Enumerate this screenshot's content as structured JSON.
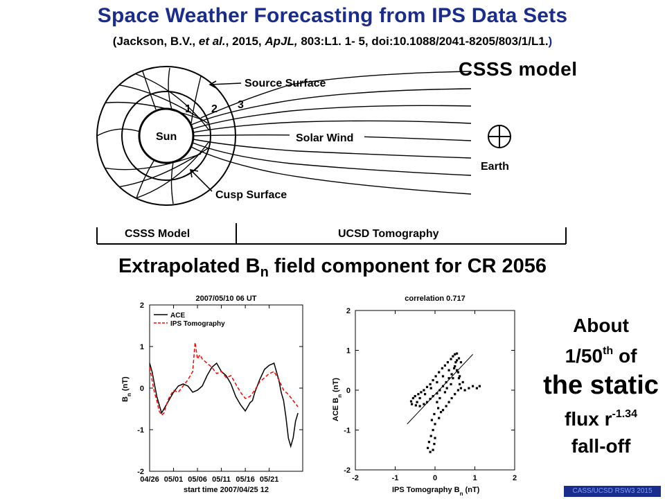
{
  "header": {
    "title": "Space Weather Forecasting from IPS Data Sets",
    "citation_open": "(Jackson, B.V., ",
    "citation_etal": "et al.",
    "citation_mid": ", 2015, ",
    "citation_journal": "ApJL,",
    "citation_rest": " 803:L1. 1- 5, doi:10.1088/2041-8205/803/1/L1.",
    "citation_close": ")"
  },
  "diagram": {
    "model_label": "CSSS model",
    "source_surface": "Source Surface",
    "sun": "Sun",
    "solar_wind": "Solar Wind",
    "earth": "Earth",
    "cusp_surface": "Cusp Surface",
    "region_1": "1",
    "region_2": "2",
    "region_3": "3",
    "bar_left": "CSSS Model",
    "bar_right": "UCSD Tomography"
  },
  "section": {
    "title_prefix": "Extrapolated B",
    "title_sub": "n",
    "title_suffix": " field component for CR 2056"
  },
  "aside": {
    "line1": "About",
    "line2_pre": "1/50",
    "line2_sup": "th",
    "line2_post": " of",
    "line3": "the static",
    "line4_pre": "flux r",
    "line4_sup": "-1.34",
    "line5": "fall-off"
  },
  "footer": "CASS/UCSD  RSW3 2015",
  "chart_data": [
    {
      "type": "line",
      "title": "2007/05/10 06 UT",
      "xlabel": "start time 2007/04/25 12",
      "ylabel": "B_n (nT)",
      "ylim": [
        -2,
        2
      ],
      "xlim": [
        0,
        32
      ],
      "x_ticks": [
        0,
        5,
        10,
        15,
        20,
        25
      ],
      "x_tick_labels": [
        "04/26",
        "05/01",
        "05/06",
        "05/11",
        "05/16",
        "05/21"
      ],
      "y_ticks": [
        -2,
        -1,
        0,
        1,
        2
      ],
      "y_tick_labels": [
        "-2",
        "-1",
        "0",
        "1",
        "2"
      ],
      "legend": "top-left",
      "series": [
        {
          "name": "ACE",
          "color": "#000000",
          "style": "solid",
          "x": [
            0,
            0.5,
            1,
            1.5,
            2,
            2.5,
            3,
            3.5,
            4,
            5,
            6,
            7,
            8,
            9,
            10,
            11,
            12,
            13,
            14,
            15,
            16,
            17,
            18,
            19,
            20,
            20.5,
            21,
            21.5,
            22,
            23,
            24,
            25,
            26,
            26.5,
            27,
            27.5,
            28,
            28.5,
            29,
            29.5,
            30,
            30.5,
            31
          ],
          "values": [
            0.6,
            0.4,
            0.1,
            -0.2,
            -0.4,
            -0.6,
            -0.5,
            -0.4,
            -0.3,
            -0.1,
            0.05,
            0.1,
            0.05,
            -0.1,
            -0.05,
            0.05,
            0.3,
            0.5,
            0.6,
            0.4,
            0.3,
            0.1,
            -0.2,
            -0.4,
            -0.55,
            -0.45,
            -0.35,
            -0.3,
            -0.1,
            0.2,
            0.45,
            0.55,
            0.6,
            0.4,
            0.2,
            -0.1,
            -0.3,
            -0.7,
            -1.2,
            -1.4,
            -1.2,
            -0.8,
            -0.6
          ]
        },
        {
          "name": "IPS Tomography",
          "color": "#ff0000",
          "style": "dashed",
          "x": [
            0,
            0.5,
            1,
            1.5,
            2,
            2.5,
            3,
            3.5,
            4,
            5,
            6,
            7,
            8,
            9,
            9.5,
            10,
            10.5,
            11,
            12,
            13,
            14,
            15,
            16,
            17,
            18,
            19,
            20,
            21,
            22,
            23,
            24,
            25,
            26,
            27,
            28,
            29,
            30,
            31
          ],
          "values": [
            0.5,
            0.2,
            -0.1,
            -0.3,
            -0.55,
            -0.65,
            -0.6,
            -0.4,
            -0.25,
            -0.05,
            -0.1,
            0.05,
            0.2,
            0.4,
            1.1,
            0.7,
            0.8,
            0.7,
            0.6,
            0.5,
            0.35,
            0.4,
            0.25,
            0.3,
            0.1,
            -0.1,
            -0.25,
            -0.2,
            -0.05,
            0.15,
            0.25,
            0.35,
            0.4,
            0.2,
            -0.05,
            -0.15,
            -0.3,
            -0.45
          ]
        }
      ]
    },
    {
      "type": "scatter",
      "title": "correlation 0.717",
      "xlabel": "IPS Tomography B_n (nT)",
      "ylabel": "ACE B_n (nT)",
      "xlim": [
        -2,
        2
      ],
      "ylim": [
        -2,
        2
      ],
      "x_ticks": [
        -2,
        -1,
        0,
        1,
        2
      ],
      "y_ticks": [
        -2,
        -1,
        0,
        1,
        2
      ],
      "fit_line": [
        [
          -0.7,
          -0.85
        ],
        [
          0.95,
          0.9
        ]
      ],
      "points": [
        [
          -0.55,
          -0.2
        ],
        [
          -0.5,
          -0.15
        ],
        [
          -0.42,
          -0.1
        ],
        [
          -0.35,
          -0.05
        ],
        [
          -0.28,
          0.0
        ],
        [
          -0.2,
          0.08
        ],
        [
          -0.12,
          0.15
        ],
        [
          -0.05,
          0.25
        ],
        [
          0.02,
          0.35
        ],
        [
          0.1,
          0.45
        ],
        [
          0.18,
          0.55
        ],
        [
          0.25,
          0.62
        ],
        [
          0.32,
          0.7
        ],
        [
          0.4,
          0.78
        ],
        [
          0.45,
          0.85
        ],
        [
          0.5,
          0.9
        ],
        [
          0.55,
          0.92
        ],
        [
          0.52,
          0.7
        ],
        [
          0.48,
          0.55
        ],
        [
          0.42,
          0.4
        ],
        [
          0.35,
          0.3
        ],
        [
          0.28,
          0.2
        ],
        [
          0.2,
          0.1
        ],
        [
          0.12,
          0.0
        ],
        [
          0.05,
          -0.08
        ],
        [
          -0.05,
          -0.15
        ],
        [
          -0.12,
          -0.22
        ],
        [
          -0.2,
          -0.3
        ],
        [
          -0.28,
          -0.35
        ],
        [
          -0.38,
          -0.4
        ],
        [
          -0.48,
          -0.38
        ],
        [
          -0.58,
          -0.35
        ],
        [
          -0.6,
          -0.28
        ],
        [
          0.5,
          0.6
        ],
        [
          0.55,
          0.5
        ],
        [
          0.6,
          0.3
        ],
        [
          0.62,
          0.15
        ],
        [
          0.58,
          0.0
        ],
        [
          0.5,
          -0.1
        ],
        [
          0.42,
          -0.2
        ],
        [
          0.35,
          -0.3
        ],
        [
          0.28,
          -0.4
        ],
        [
          0.2,
          -0.5
        ],
        [
          0.15,
          -0.55
        ],
        [
          0.1,
          -0.7
        ],
        [
          0.0,
          -0.85
        ],
        [
          -0.05,
          -1.0
        ],
        [
          -0.1,
          -1.15
        ],
        [
          -0.15,
          -1.3
        ],
        [
          -0.18,
          -1.45
        ],
        [
          -0.12,
          -1.55
        ],
        [
          -0.05,
          -1.5
        ],
        [
          -0.02,
          -1.35
        ],
        [
          0.0,
          -1.2
        ],
        [
          0.3,
          0.05
        ],
        [
          0.25,
          -0.05
        ],
        [
          0.4,
          0.15
        ],
        [
          0.65,
          0.05
        ],
        [
          0.75,
          0.0
        ],
        [
          0.85,
          0.05
        ],
        [
          0.95,
          0.1
        ],
        [
          1.05,
          0.05
        ],
        [
          1.12,
          0.1
        ],
        [
          0.7,
          0.2
        ],
        [
          0.62,
          0.35
        ],
        [
          0.58,
          0.45
        ],
        [
          0.45,
          0.3
        ],
        [
          0.05,
          -0.3
        ],
        [
          0.12,
          -0.2
        ],
        [
          0.08,
          -0.45
        ],
        [
          -0.02,
          -0.6
        ],
        [
          -0.08,
          -0.75
        ],
        [
          0.65,
          0.7
        ],
        [
          0.6,
          0.8
        ],
        [
          0.55,
          0.75
        ],
        [
          0.35,
          0.5
        ],
        [
          0.2,
          0.35
        ],
        [
          0.05,
          0.2
        ],
        [
          -0.1,
          0.05
        ],
        [
          -0.25,
          -0.1
        ],
        [
          -0.38,
          -0.2
        ],
        [
          -0.45,
          -0.3
        ]
      ]
    }
  ]
}
